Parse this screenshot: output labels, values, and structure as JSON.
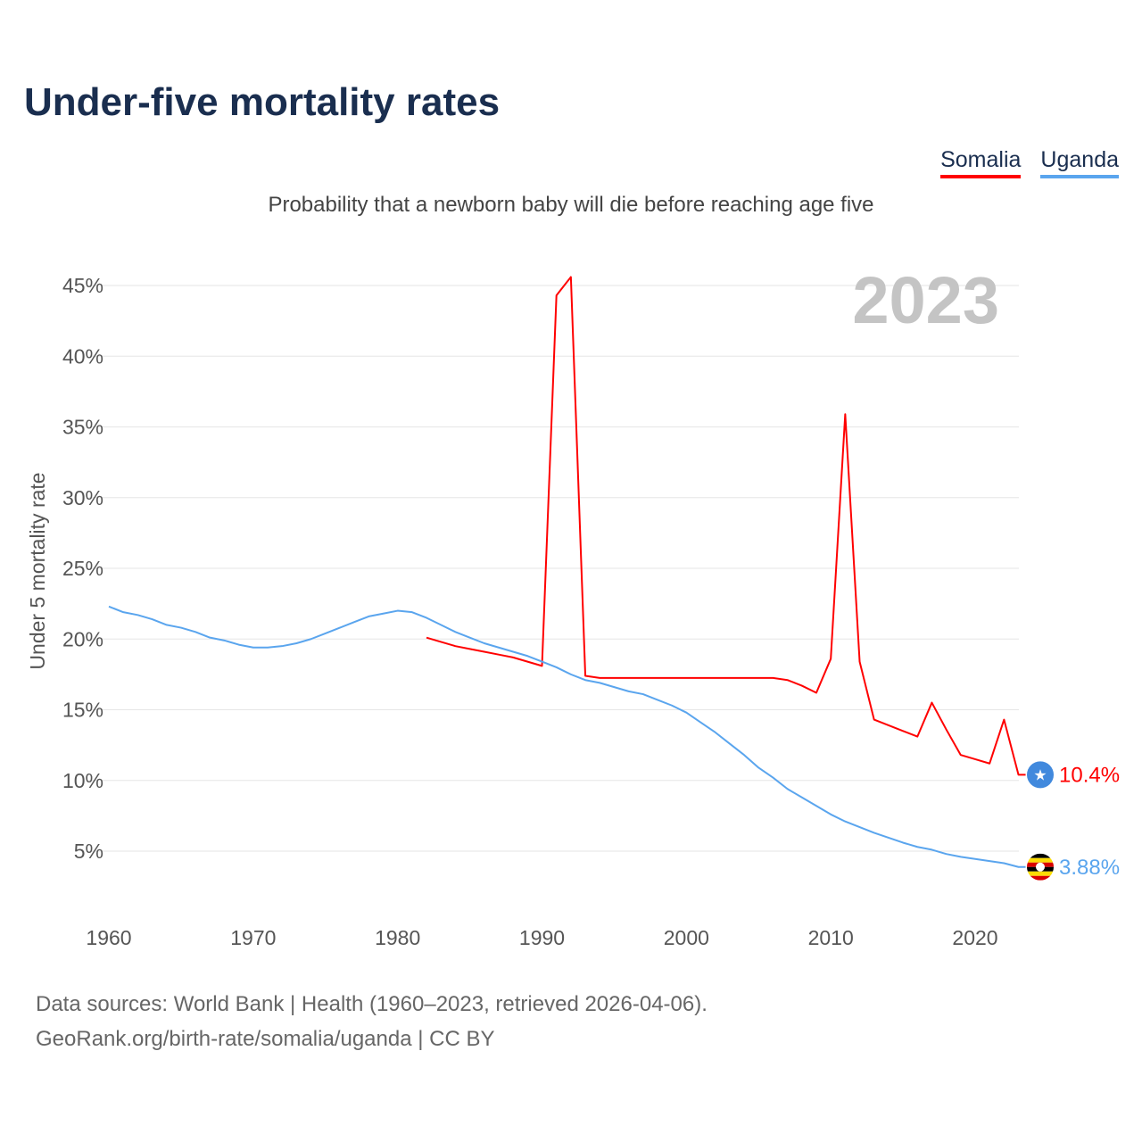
{
  "title": "Under-five mortality rates",
  "subtitle": "Probability that a newborn baby will die before reaching age five",
  "year_label": "2023",
  "footer": {
    "line1": "Data sources: World Bank | Health (1960–2023, retrieved 2026-04-06).",
    "line2": "GeoRank.org/birth-rate/somalia/uganda | CC BY"
  },
  "chart_data": {
    "type": "line",
    "title": "Under-five mortality rates",
    "ylabel": "Under 5 mortality rate",
    "xlabel": "",
    "xlim": [
      1960,
      2023
    ],
    "ylim": [
      1,
      47
    ],
    "x_ticks": [
      1960,
      1970,
      1980,
      1990,
      2000,
      2010,
      2020
    ],
    "y_ticks": [
      5,
      10,
      15,
      20,
      25,
      30,
      35,
      40,
      45
    ],
    "y_tick_labels": [
      "5%",
      "10%",
      "15%",
      "20%",
      "25%",
      "30%",
      "35%",
      "40%",
      "45%"
    ],
    "grid": true,
    "legend_position": "top-right",
    "series": [
      {
        "name": "Somalia",
        "color": "#ff0000",
        "end_label": "10.4%",
        "icon": "somalia-flag-icon",
        "start_year": 1982,
        "values": [
          20.1,
          19.8,
          19.5,
          19.3,
          19.1,
          18.9,
          18.7,
          18.4,
          18.1,
          44.3,
          45.6,
          17.4,
          17.25,
          17.25,
          17.25,
          17.25,
          17.25,
          17.25,
          17.25,
          17.25,
          17.25,
          17.25,
          17.25,
          17.25,
          17.25,
          17.1,
          16.7,
          16.2,
          18.6,
          35.9,
          18.4,
          14.3,
          13.9,
          13.5,
          13.1,
          15.5,
          13.6,
          11.8,
          11.5,
          11.2,
          14.3,
          10.4
        ]
      },
      {
        "name": "Uganda",
        "color": "#5aa5ee",
        "end_label": "3.88%",
        "icon": "uganda-flag-icon",
        "start_year": 1960,
        "values": [
          22.3,
          21.9,
          21.7,
          21.4,
          21.0,
          20.8,
          20.5,
          20.1,
          19.9,
          19.6,
          19.4,
          19.4,
          19.5,
          19.7,
          20.0,
          20.4,
          20.8,
          21.2,
          21.6,
          21.8,
          22.0,
          21.9,
          21.5,
          21.0,
          20.5,
          20.1,
          19.7,
          19.4,
          19.1,
          18.8,
          18.4,
          18.0,
          17.5,
          17.1,
          16.9,
          16.6,
          16.3,
          16.1,
          15.7,
          15.3,
          14.8,
          14.1,
          13.4,
          12.6,
          11.8,
          10.9,
          10.2,
          9.4,
          8.8,
          8.2,
          7.6,
          7.1,
          6.7,
          6.3,
          5.95,
          5.6,
          5.3,
          5.1,
          4.8,
          4.6,
          4.45,
          4.3,
          4.15,
          3.88
        ]
      }
    ]
  }
}
